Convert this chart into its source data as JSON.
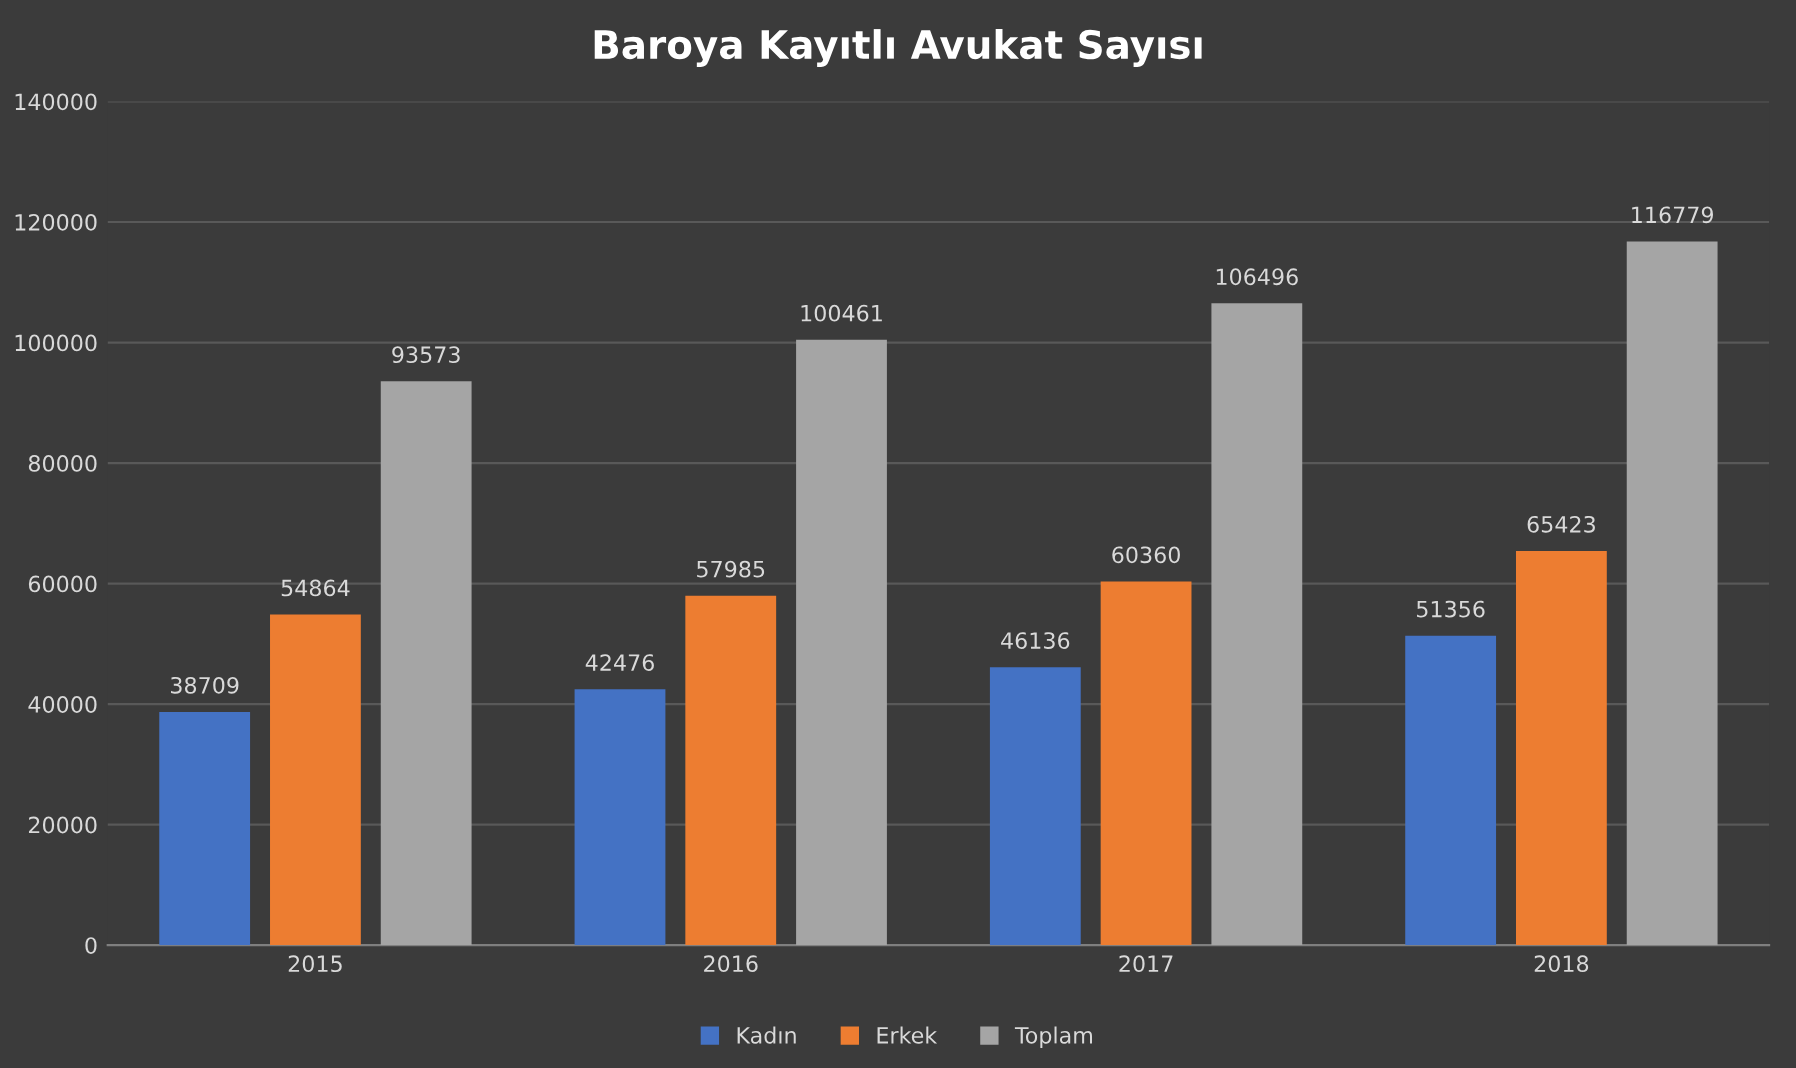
{
  "chart_data": {
    "type": "bar",
    "title": "Baroya Kayıtlı Avukat Sayısı",
    "categories": [
      "2015",
      "2016",
      "2017",
      "2018"
    ],
    "series": [
      {
        "name": "Kadın",
        "color": "#4472c4",
        "values": [
          38709,
          42476,
          46136,
          51356
        ]
      },
      {
        "name": "Erkek",
        "color": "#ed7d31",
        "values": [
          54864,
          57985,
          60360,
          65423
        ]
      },
      {
        "name": "Toplam",
        "color": "#a5a5a5",
        "values": [
          93573,
          100461,
          106496,
          116779
        ]
      }
    ],
    "ylim": [
      0,
      140000
    ],
    "yticks": [
      0,
      20000,
      40000,
      60000,
      80000,
      100000,
      120000,
      140000
    ],
    "grid": "y",
    "legend": "bottom",
    "data_labels": true
  }
}
